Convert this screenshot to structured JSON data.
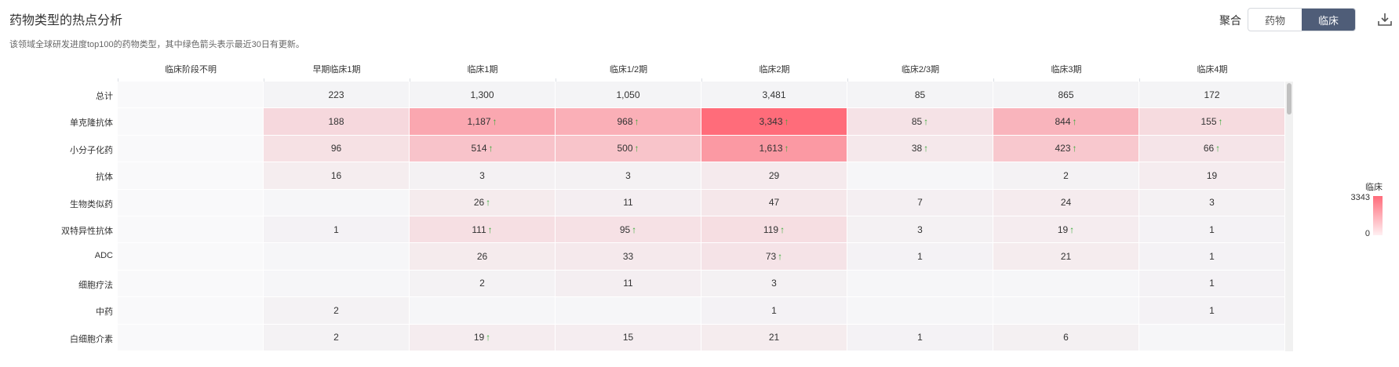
{
  "header": {
    "title": "药物类型的热点分析",
    "subtitle": "该领域全球研发进度top100的药物类型，其中绿色箭头表示最近30日有更新。",
    "agg_label": "聚合",
    "toggle": [
      "药物",
      "临床"
    ],
    "toggle_active": 1
  },
  "legend": {
    "title": "临床",
    "max": "3343",
    "min": "0"
  },
  "colors": {
    "accent": "#4f5d78",
    "heat_high": "#ff6b7a",
    "heat_low": "#f4f4f6",
    "arrow": "#3bab3b"
  },
  "chart_data": {
    "type": "heatmap",
    "columns": [
      "临床阶段不明",
      "早期临床1期",
      "临床1期",
      "临床1/2期",
      "临床2期",
      "临床2/3期",
      "临床3期",
      "临床4期"
    ],
    "rows": [
      {
        "label": "总计",
        "values": [
          null,
          223,
          1300,
          1050,
          3481,
          85,
          865,
          172
        ],
        "updated": [
          false,
          false,
          false,
          false,
          false,
          false,
          false,
          false
        ],
        "is_total": true
      },
      {
        "label": "单克隆抗体",
        "values": [
          null,
          188,
          1187,
          968,
          3343,
          85,
          844,
          155
        ],
        "updated": [
          false,
          false,
          true,
          true,
          true,
          true,
          true,
          true
        ]
      },
      {
        "label": "小分子化药",
        "values": [
          null,
          96,
          514,
          500,
          1613,
          38,
          423,
          66
        ],
        "updated": [
          false,
          false,
          true,
          true,
          true,
          true,
          true,
          true
        ]
      },
      {
        "label": "抗体",
        "values": [
          null,
          16,
          3,
          3,
          29,
          null,
          2,
          19
        ],
        "updated": [
          false,
          false,
          false,
          false,
          false,
          false,
          false,
          false
        ]
      },
      {
        "label": "生物类似药",
        "values": [
          null,
          null,
          26,
          11,
          47,
          7,
          24,
          3
        ],
        "updated": [
          false,
          false,
          true,
          false,
          false,
          false,
          false,
          false
        ]
      },
      {
        "label": "双特异性抗体",
        "values": [
          null,
          1,
          111,
          95,
          119,
          3,
          19,
          1
        ],
        "updated": [
          false,
          false,
          true,
          true,
          true,
          false,
          true,
          false
        ]
      },
      {
        "label": "ADC",
        "values": [
          null,
          null,
          26,
          33,
          73,
          1,
          21,
          1
        ],
        "updated": [
          false,
          false,
          false,
          false,
          true,
          false,
          false,
          false
        ]
      },
      {
        "label": "细胞疗法",
        "values": [
          null,
          null,
          2,
          11,
          3,
          null,
          null,
          1
        ],
        "updated": [
          false,
          false,
          false,
          false,
          false,
          false,
          false,
          false
        ]
      },
      {
        "label": "中药",
        "values": [
          null,
          2,
          null,
          null,
          1,
          null,
          null,
          1
        ],
        "updated": [
          false,
          false,
          false,
          false,
          false,
          false,
          false,
          false
        ]
      },
      {
        "label": "白细胞介素",
        "values": [
          null,
          2,
          19,
          15,
          21,
          1,
          6,
          null
        ],
        "updated": [
          false,
          false,
          true,
          false,
          false,
          false,
          false,
          false
        ]
      }
    ],
    "scale": {
      "min": 0,
      "max": 3343
    }
  }
}
